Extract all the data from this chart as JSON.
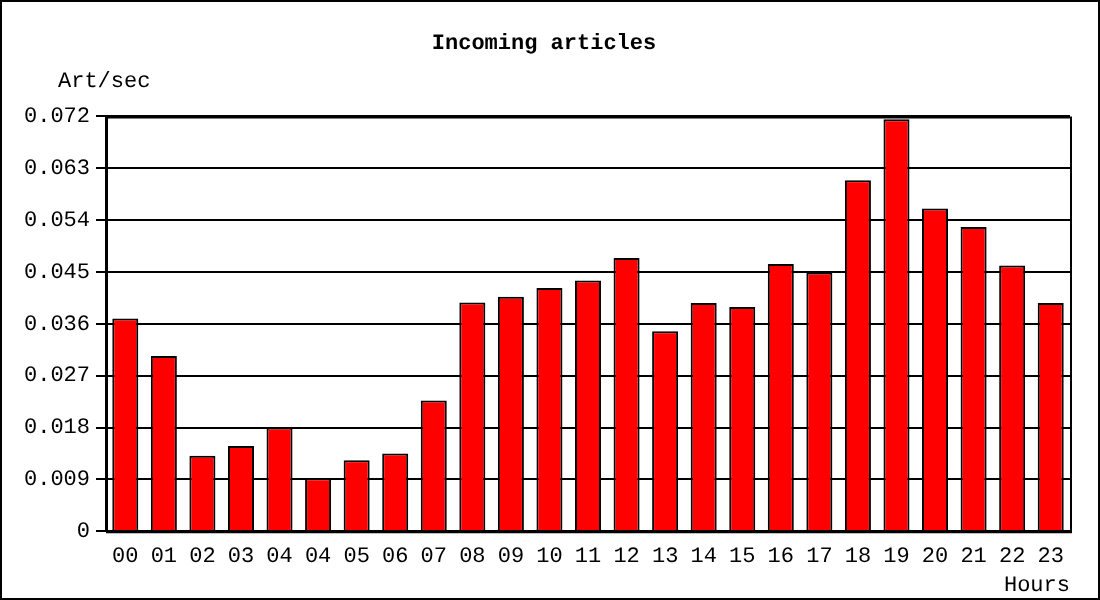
{
  "chart_data": {
    "type": "bar",
    "title": "Incoming articles",
    "xlabel": "Hours",
    "ylabel": "Art/sec",
    "categories": [
      "00",
      "01",
      "02",
      "03",
      "04",
      "04",
      "05",
      "06",
      "07",
      "08",
      "09",
      "10",
      "11",
      "12",
      "13",
      "14",
      "15",
      "16",
      "17",
      "18",
      "19",
      "20",
      "21",
      "22",
      "23"
    ],
    "values": [
      0.0369,
      0.0304,
      0.0131,
      0.0148,
      0.018,
      0.0092,
      0.0123,
      0.0135,
      0.0227,
      0.0397,
      0.0407,
      0.0422,
      0.0435,
      0.0474,
      0.0347,
      0.0396,
      0.0389,
      0.0464,
      0.0449,
      0.0609,
      0.0715,
      0.056,
      0.0528,
      0.0461,
      0.0396
    ],
    "color": "#ff0000",
    "ylim": [
      0,
      0.072
    ],
    "yticks": [
      0,
      0.009,
      0.018,
      0.027,
      0.036,
      0.045,
      0.054,
      0.063,
      0.072
    ],
    "grid": "y",
    "legend": false
  }
}
